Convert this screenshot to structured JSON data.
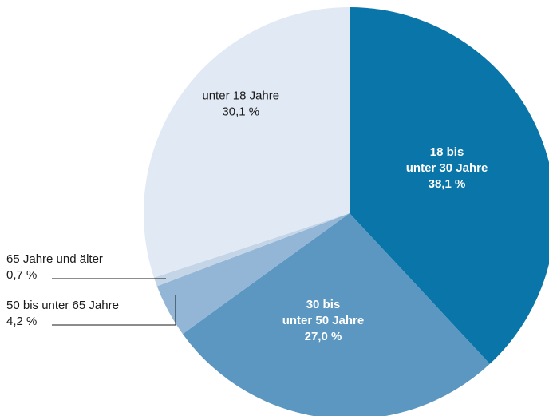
{
  "chart_data": {
    "type": "pie",
    "title": "",
    "slices": [
      {
        "label_lines": [
          "18 bis",
          "unter 30 Jahre"
        ],
        "value": 38.1,
        "value_label": "38,1 %",
        "color": "#0a75a8"
      },
      {
        "label_lines": [
          "30 bis",
          "unter 50 Jahre"
        ],
        "value": 27.0,
        "value_label": "27,0 %",
        "color": "#5b97c0"
      },
      {
        "label_lines": [
          "50 bis unter 65 Jahre"
        ],
        "value": 4.2,
        "value_label": "4,2 %",
        "color": "#93b6d6"
      },
      {
        "label_lines": [
          "65 Jahre und älter"
        ],
        "value": 0.7,
        "value_label": "0,7 %",
        "color": "#c4d5e8"
      },
      {
        "label_lines": [
          "unter 18 Jahre"
        ],
        "value": 30.1,
        "value_label": "30,1 %",
        "color": "#e1e9f4"
      }
    ]
  }
}
